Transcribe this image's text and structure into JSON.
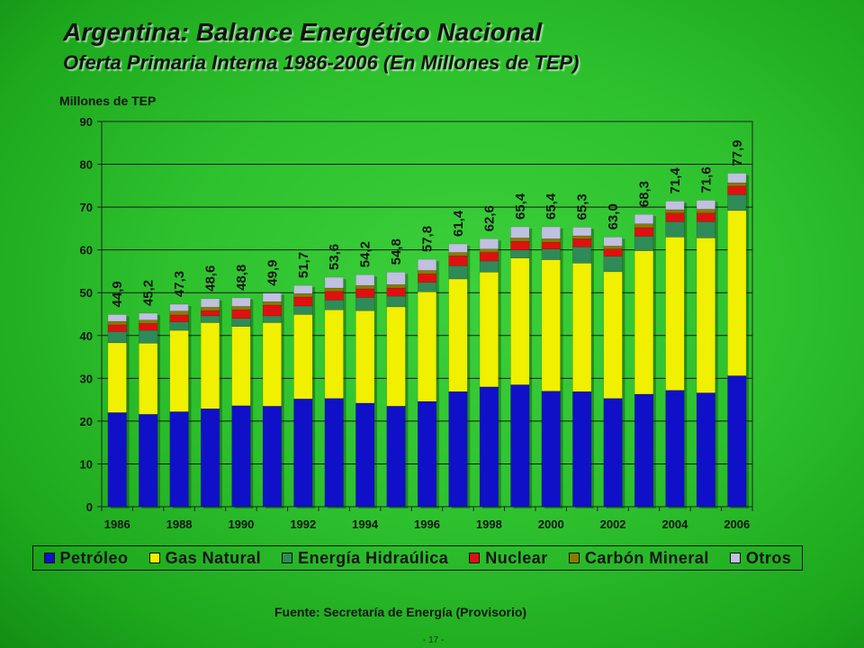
{
  "title": "Argentina: Balance Energético Nacional",
  "subtitle": "Oferta Primaria Interna 1986-2006 (En Millones de TEP)",
  "source": "Fuente: Secretaría de Energía (Provisorio)",
  "page_number": "- 17 -",
  "chart_data": {
    "type": "bar",
    "stacked": true,
    "ylabel": "Millones de TEP",
    "ylim": [
      0,
      90
    ],
    "yticks": [
      0,
      10,
      20,
      30,
      40,
      50,
      60,
      70,
      80,
      90
    ],
    "grid": true,
    "legend_placement": "bottom",
    "categories": [
      "1986",
      "1987",
      "1988",
      "1989",
      "1990",
      "1991",
      "1992",
      "1993",
      "1994",
      "1995",
      "1996",
      "1997",
      "1998",
      "1999",
      "2000",
      "2001",
      "2002",
      "2003",
      "2004",
      "2005",
      "2006"
    ],
    "xtick_labels": [
      "1986",
      "",
      "1988",
      "",
      "1990",
      "",
      "1992",
      "",
      "1994",
      "",
      "1996",
      "",
      "1998",
      "",
      "2000",
      "",
      "2002",
      "",
      "2004",
      "",
      "2006"
    ],
    "totals": [
      "44,9",
      "45,2",
      "47,3",
      "48,6",
      "48,8",
      "49,9",
      "51,7",
      "53,6",
      "54,2",
      "54,8",
      "57,8",
      "61,4",
      "62,6",
      "65,4",
      "65,4",
      "65,3",
      "63,0",
      "68,3",
      "71,4",
      "71,6",
      "77,9"
    ],
    "series": [
      {
        "name": "Petróleo",
        "color": "#1010c8",
        "values": [
          22.0,
          21.6,
          22.2,
          22.9,
          23.6,
          23.5,
          25.2,
          25.3,
          24.2,
          23.5,
          24.6,
          26.9,
          28.0,
          28.5,
          27.0,
          26.9,
          25.3,
          26.3,
          27.2,
          26.6,
          30.6
        ]
      },
      {
        "name": "Gas Natural",
        "color": "#f0f000",
        "values": [
          16.3,
          16.6,
          19.0,
          20.1,
          18.5,
          19.5,
          19.7,
          20.7,
          21.6,
          23.2,
          25.6,
          26.3,
          26.8,
          29.6,
          30.7,
          30.0,
          29.6,
          33.5,
          35.8,
          36.2,
          38.6
        ]
      },
      {
        "name": "Energía Hidraúlica",
        "color": "#2e8b57",
        "values": [
          2.6,
          3.0,
          2.0,
          1.6,
          1.9,
          1.6,
          2.0,
          2.3,
          3.1,
          2.5,
          2.2,
          3.1,
          2.6,
          1.9,
          2.5,
          3.8,
          3.6,
          3.4,
          3.6,
          3.8,
          3.7
        ]
      },
      {
        "name": "Nuclear",
        "color": "#e01010",
        "values": [
          1.6,
          1.6,
          1.6,
          1.2,
          2.0,
          2.5,
          2.1,
          2.0,
          2.0,
          1.9,
          2.0,
          2.3,
          2.0,
          2.0,
          1.6,
          1.9,
          1.7,
          2.0,
          2.0,
          2.0,
          2.0
        ]
      },
      {
        "name": "Carbón Mineral",
        "color": "#8a7a00",
        "values": [
          0.8,
          0.8,
          0.9,
          0.8,
          0.8,
          0.8,
          0.8,
          0.8,
          0.8,
          0.8,
          0.8,
          0.8,
          0.8,
          0.8,
          0.8,
          0.7,
          0.7,
          0.9,
          0.8,
          0.9,
          0.8
        ]
      },
      {
        "name": "Otros",
        "color": "#c0c0e0",
        "values": [
          1.6,
          1.6,
          1.6,
          2.0,
          2.0,
          2.0,
          1.9,
          2.5,
          2.5,
          2.9,
          2.6,
          2.0,
          2.4,
          2.6,
          2.8,
          2.0,
          2.1,
          2.2,
          2.0,
          2.1,
          2.2
        ]
      }
    ]
  }
}
